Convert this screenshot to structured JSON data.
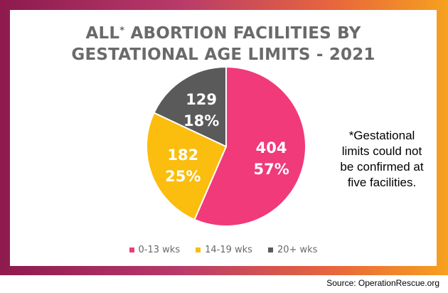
{
  "chart_data": {
    "type": "pie",
    "title_line1_prefix": "ALL",
    "title_asterisk": "*",
    "title_line1_rest": " ABORTION FACILITIES BY",
    "title_line2": "GESTATIONAL AGE LIMITS - 2021",
    "categories": [
      "0-13 wks",
      "14-19 wks",
      "20+ wks"
    ],
    "values": [
      404,
      182,
      129
    ],
    "percent_labels": [
      "57%",
      "25%",
      "18%"
    ],
    "count_labels": [
      "404",
      "182",
      "129"
    ],
    "colors": [
      "#f03a7a",
      "#fbbd0e",
      "#5a5a5a"
    ],
    "legend_position": "bottom"
  },
  "note": {
    "line1": "*Gestational",
    "line2": "limits could not",
    "line3": "be confirmed at",
    "line4": "five facilities."
  },
  "source": "Source: OperationRescue.org"
}
